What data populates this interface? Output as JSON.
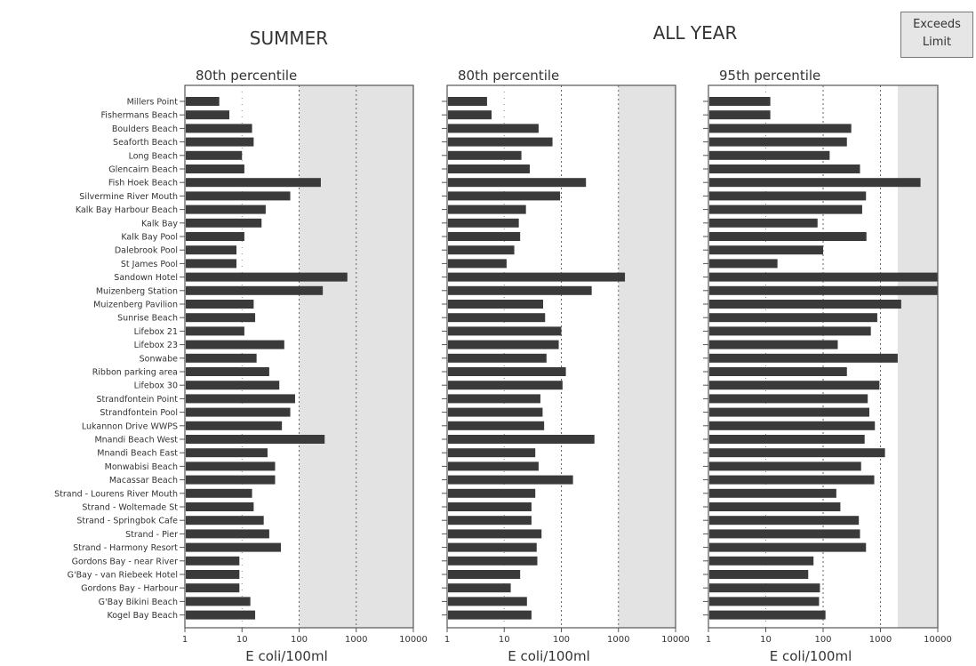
{
  "colors": {
    "bar": "#3a3a3a",
    "shade": "#e3e3e3",
    "frame": "#555555",
    "text": "#333333"
  },
  "headings": {
    "summer": "SUMMER",
    "all_year": "ALL YEAR"
  },
  "legend": {
    "line1": "Exceeds",
    "line2": "Limit"
  },
  "chart_data": [
    {
      "type": "bar",
      "orientation": "horizontal",
      "title": "80th percentile",
      "xlabel": "E coli/100ml",
      "xscale": "log",
      "xlim": [
        1,
        10000
      ],
      "xticks": [
        "1",
        "10",
        "100",
        "1000",
        "10000"
      ],
      "limit_shaded_from": 100,
      "categories": [
        "Millers Point",
        "Fishermans Beach",
        "Boulders Beach",
        "Seaforth Beach",
        "Long Beach",
        "Glencairn Beach",
        "Fish Hoek Beach",
        "Silvermine River Mouth",
        "Kalk Bay Harbour Beach",
        "Kalk Bay",
        "Kalk Bay Pool",
        "Dalebrook Pool",
        "St James Pool",
        "Sandown Hotel",
        "Muizenberg Station",
        "Muizenberg Pavilion",
        "Sunrise Beach",
        "Lifebox 21",
        "Lifebox 23",
        "Sonwabe",
        "Ribbon parking area",
        "Lifebox 30",
        "Strandfontein Point",
        "Strandfontein Pool",
        "Lukannon Drive WWPS",
        "Mnandi Beach West",
        "Mnandi Beach East",
        "Monwabisi Beach",
        "Macassar Beach",
        "Strand - Lourens River Mouth",
        "Strand - Woltemade St",
        "Strand - Springbok Cafe",
        "Strand - Pier",
        "Strand - Harmony Resort",
        "Gordons Bay - near River",
        "G'Bay - van Riebeek Hotel",
        "Gordons Bay - Harbour",
        "G'Bay Bikini Beach",
        "Kogel Bay Beach"
      ],
      "values": [
        4,
        6,
        15,
        16,
        10,
        11,
        240,
        70,
        26,
        22,
        11,
        8,
        8,
        700,
        260,
        16,
        17,
        11,
        55,
        18,
        30,
        45,
        85,
        70,
        50,
        280,
        28,
        38,
        38,
        15,
        16,
        24,
        30,
        48,
        9,
        9,
        9,
        14,
        17
      ]
    },
    {
      "type": "bar",
      "orientation": "horizontal",
      "title": "80th percentile",
      "xlabel": "E coli/100ml",
      "xscale": "log",
      "xlim": [
        1,
        10000
      ],
      "xticks": [
        "1",
        "10",
        "100",
        "1000",
        "10000"
      ],
      "limit_shaded_from": 1000,
      "categories": [
        "Millers Point",
        "Fishermans Beach",
        "Boulders Beach",
        "Seaforth Beach",
        "Long Beach",
        "Glencairn Beach",
        "Fish Hoek Beach",
        "Silvermine River Mouth",
        "Kalk Bay Harbour Beach",
        "Kalk Bay",
        "Kalk Bay Pool",
        "Dalebrook Pool",
        "St James Pool",
        "Sandown Hotel",
        "Muizenberg Station",
        "Muizenberg Pavilion",
        "Sunrise Beach",
        "Lifebox 21",
        "Lifebox 23",
        "Sonwabe",
        "Ribbon parking area",
        "Lifebox 30",
        "Strandfontein Point",
        "Strandfontein Pool",
        "Lukannon Drive WWPS",
        "Mnandi Beach West",
        "Mnandi Beach East",
        "Monwabisi Beach",
        "Macassar Beach",
        "Strand - Lourens River Mouth",
        "Strand - Woltemade St",
        "Strand - Springbok Cafe",
        "Strand - Pier",
        "Strand - Harmony Resort",
        "Gordons Bay - near River",
        "G'Bay - van Riebeek Hotel",
        "Gordons Bay - Harbour",
        "G'Bay Bikini Beach",
        "Kogel Bay Beach"
      ],
      "values": [
        5,
        6,
        40,
        70,
        20,
        28,
        270,
        95,
        24,
        18,
        19,
        15,
        11,
        1300,
        340,
        48,
        52,
        100,
        90,
        55,
        120,
        105,
        43,
        47,
        50,
        380,
        35,
        40,
        160,
        35,
        30,
        30,
        45,
        37,
        38,
        19,
        13,
        25,
        30
      ]
    },
    {
      "type": "bar",
      "orientation": "horizontal",
      "title": "95th percentile",
      "xlabel": "E coli/100ml",
      "xscale": "log",
      "xlim": [
        1,
        10000
      ],
      "xticks": [
        "1",
        "10",
        "100",
        "1000",
        "10000"
      ],
      "limit_shaded_from": 2000,
      "categories": [
        "Millers Point",
        "Fishermans Beach",
        "Boulders Beach",
        "Seaforth Beach",
        "Long Beach",
        "Glencairn Beach",
        "Fish Hoek Beach",
        "Silvermine River Mouth",
        "Kalk Bay Harbour Beach",
        "Kalk Bay",
        "Kalk Bay Pool",
        "Dalebrook Pool",
        "St James Pool",
        "Sandown Hotel",
        "Muizenberg Station",
        "Muizenberg Pavilion",
        "Sunrise Beach",
        "Lifebox 21",
        "Lifebox 23",
        "Sonwabe",
        "Ribbon parking area",
        "Lifebox 30",
        "Strandfontein Point",
        "Strandfontein Pool",
        "Lukannon Drive WWPS",
        "Mnandi Beach West",
        "Mnandi Beach East",
        "Monwabisi Beach",
        "Macassar Beach",
        "Strand - Lourens River Mouth",
        "Strand - Woltemade St",
        "Strand - Springbok Cafe",
        "Strand - Pier",
        "Strand - Harmony Resort",
        "Gordons Bay - near River",
        "G'Bay - van Riebeek Hotel",
        "Gordons Bay - Harbour",
        "G'Bay Bikini Beach",
        "Kogel Bay Beach"
      ],
      "values": [
        12,
        12,
        310,
        260,
        130,
        440,
        5000,
        560,
        480,
        80,
        570,
        100,
        16,
        10000,
        10000,
        2300,
        880,
        680,
        180,
        2000,
        260,
        960,
        600,
        640,
        800,
        530,
        1200,
        460,
        780,
        170,
        200,
        420,
        440,
        560,
        68,
        55,
        88,
        85,
        110
      ]
    }
  ]
}
